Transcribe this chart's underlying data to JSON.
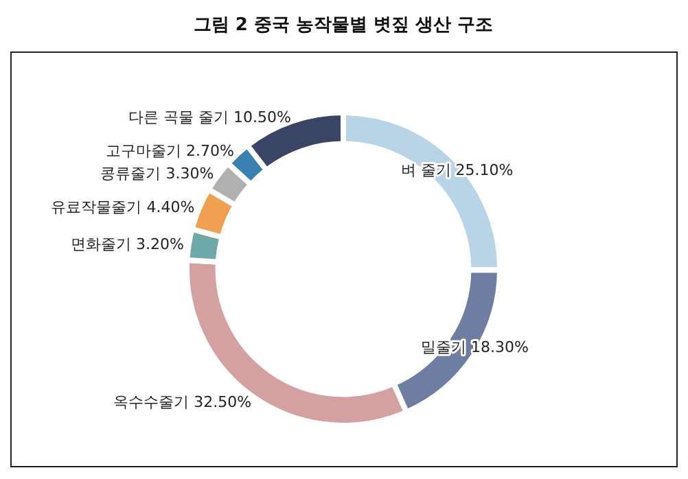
{
  "chart_data": {
    "type": "donut",
    "title": "그림 2 중국 농작물별 볏짚 생산 구조",
    "categories": [
      "벼 줄기",
      "밀줄기",
      "옥수수줄기",
      "면화줄기",
      "유료작물줄기",
      "콩류줄기",
      "고구마줄기",
      "다른 곡물 줄기"
    ],
    "values": [
      25.1,
      18.3,
      32.5,
      3.2,
      4.4,
      3.3,
      2.7,
      10.5
    ],
    "value_labels": [
      "25.10%",
      "18.30%",
      "32.50%",
      "3.20%",
      "4.40%",
      "3.30%",
      "2.70%",
      "10.50%"
    ],
    "colors": [
      "#b8d4e6",
      "#6e7ea3",
      "#d4a0a0",
      "#6fa8a8",
      "#f0a050",
      "#b0b0b0",
      "#3a80b0",
      "#3a4565"
    ]
  }
}
